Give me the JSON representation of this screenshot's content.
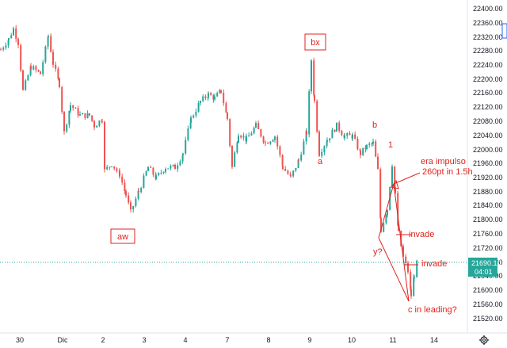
{
  "colors": {
    "up": "#26a69a",
    "down": "#ef5350",
    "annotation": "#e0231c",
    "grid": "#f0f3fa",
    "axis_text": "#131722",
    "price_line": "#26a69a",
    "price_tag_bg": "#26a69a"
  },
  "icons": {
    "settings": "gear-icon"
  },
  "chart_data": {
    "type": "candlestick",
    "y_ticks": [
      "22400.00",
      "22360.00",
      "22320.00",
      "22280.00",
      "22240.00",
      "22200.00",
      "22160.00",
      "22120.00",
      "22080.00",
      "22040.00",
      "22000.00",
      "21960.00",
      "21920.00",
      "21880.00",
      "21840.00",
      "21800.00",
      "21760.00",
      "21720.00",
      "21680.00",
      "21640.00",
      "21600.00",
      "21560.00",
      "21520.00"
    ],
    "y_values": [
      22400,
      22360,
      22320,
      22280,
      22240,
      22200,
      22160,
      22120,
      22080,
      22040,
      22000,
      21960,
      21920,
      21880,
      21840,
      21800,
      21760,
      21720,
      21680,
      21640,
      21600,
      21560,
      21520
    ],
    "ylim": [
      21505,
      22420
    ],
    "x_ticks": [
      "30",
      "Dic",
      "2",
      "3",
      "4",
      "7",
      "8",
      "9",
      "10",
      "11",
      "14"
    ],
    "last_price": "21690.10",
    "countdown": "04:01",
    "grid": false,
    "key_points": [
      {
        "label": "aw",
        "price": 21810
      },
      {
        "label": "bx",
        "price": 22275
      },
      {
        "label": "a",
        "price": 22005
      },
      {
        "label": "b",
        "price": 22050
      },
      {
        "label": "1",
        "price": 22005
      },
      {
        "label": "y?",
        "price": 21750
      },
      {
        "label": "c in leading?",
        "price": 21580
      }
    ],
    "annotations": {
      "bx": "bx",
      "aw": "aw",
      "a": "a",
      "b": "b",
      "one": "1",
      "era_line1": "era impulso",
      "era_line2": "260pt in 1.5h",
      "invade1": "invade",
      "invade2": "invade",
      "y": "y?",
      "c": "c in leading?"
    }
  }
}
